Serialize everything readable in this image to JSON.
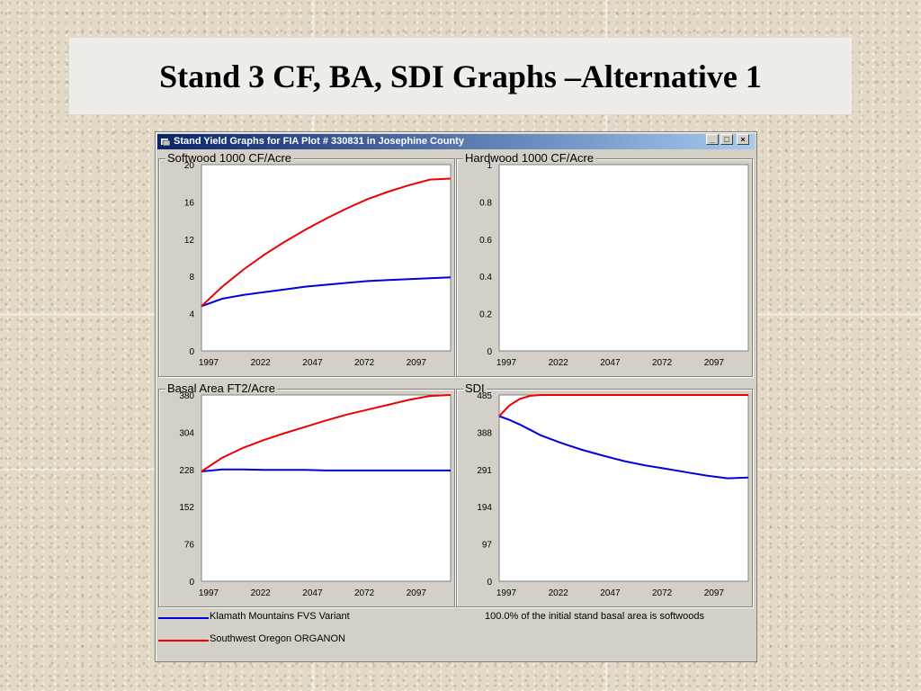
{
  "slide": {
    "title": "Stand 3 CF, BA, SDI Graphs –Alternative 1"
  },
  "window": {
    "title": "Stand Yield Graphs for FIA Plot #  330831 in Josephine County",
    "buttons": {
      "minimize": "_",
      "maximize": "□",
      "close": "×"
    }
  },
  "colors": {
    "fvs": "#0000dd",
    "organon": "#ee0000"
  },
  "legend": {
    "fvs_label": "Klamath Mountains FVS Variant",
    "organon_label": "Southwest Oregon ORGANON"
  },
  "note": "100.0% of the initial stand basal area is softwoods",
  "chart_data": [
    {
      "type": "line",
      "title": "Softwood 1000 CF/Acre",
      "xlim": [
        1997,
        2117
      ],
      "ylim": [
        0,
        20
      ],
      "yticks": [
        "20",
        "16",
        "12",
        "8",
        "4",
        "0"
      ],
      "xticks": [
        "1997",
        "2022",
        "2047",
        "2072",
        "2097"
      ],
      "x": [
        1997,
        2007,
        2017,
        2027,
        2037,
        2047,
        2057,
        2067,
        2077,
        2087,
        2097,
        2107,
        2117
      ],
      "series": [
        {
          "name": "Klamath Mountains FVS Variant",
          "values": [
            4.8,
            5.6,
            6.0,
            6.3,
            6.6,
            6.9,
            7.1,
            7.3,
            7.5,
            7.6,
            7.7,
            7.8,
            7.9
          ]
        },
        {
          "name": "Southwest Oregon ORGANON",
          "values": [
            4.8,
            6.9,
            8.7,
            10.3,
            11.7,
            13.0,
            14.2,
            15.3,
            16.3,
            17.1,
            17.8,
            18.4,
            18.5
          ]
        }
      ]
    },
    {
      "type": "line",
      "title": "Hardwood 1000 CF/Acre",
      "xlim": [
        1997,
        2117
      ],
      "ylim": [
        0,
        1
      ],
      "yticks": [
        "1",
        "0.8",
        "0.6",
        "0.4",
        "0.2",
        "0"
      ],
      "xticks": [
        "1997",
        "2022",
        "2047",
        "2072",
        "2097"
      ],
      "series": []
    },
    {
      "type": "line",
      "title": "Basal Area FT2/Acre",
      "xlim": [
        1997,
        2117
      ],
      "ylim": [
        0,
        380
      ],
      "yticks": [
        "380",
        "304",
        "228",
        "152",
        "76",
        "0"
      ],
      "xticks": [
        "1997",
        "2022",
        "2047",
        "2072",
        "2097"
      ],
      "x": [
        1997,
        2007,
        2017,
        2027,
        2037,
        2047,
        2057,
        2067,
        2077,
        2087,
        2097,
        2107,
        2117
      ],
      "series": [
        {
          "name": "Klamath Mountains FVS Variant",
          "values": [
            224,
            228,
            228,
            227,
            227,
            227,
            226,
            226,
            226,
            226,
            226,
            226,
            226
          ]
        },
        {
          "name": "Southwest Oregon ORGANON",
          "values": [
            224,
            252,
            272,
            288,
            302,
            315,
            328,
            340,
            350,
            360,
            370,
            378,
            380
          ]
        }
      ]
    },
    {
      "type": "line",
      "title": "SDI",
      "xlim": [
        1997,
        2117
      ],
      "ylim": [
        0,
        485
      ],
      "yticks": [
        "485",
        "388",
        "291",
        "194",
        "97",
        "0"
      ],
      "xticks": [
        "1997",
        "2022",
        "2047",
        "2072",
        "2097"
      ],
      "x": [
        1997,
        2002,
        2007,
        2012,
        2017,
        2027,
        2037,
        2047,
        2057,
        2067,
        2077,
        2087,
        2097,
        2107,
        2117
      ],
      "series": [
        {
          "name": "Klamath Mountains FVS Variant",
          "values": [
            430,
            420,
            408,
            394,
            380,
            360,
            342,
            327,
            313,
            302,
            293,
            284,
            275,
            268,
            270
          ]
        },
        {
          "name": "Southwest Oregon ORGANON",
          "values": [
            430,
            458,
            475,
            483,
            485,
            485,
            485,
            485,
            485,
            485,
            485,
            485,
            485,
            485,
            485
          ]
        }
      ]
    }
  ]
}
